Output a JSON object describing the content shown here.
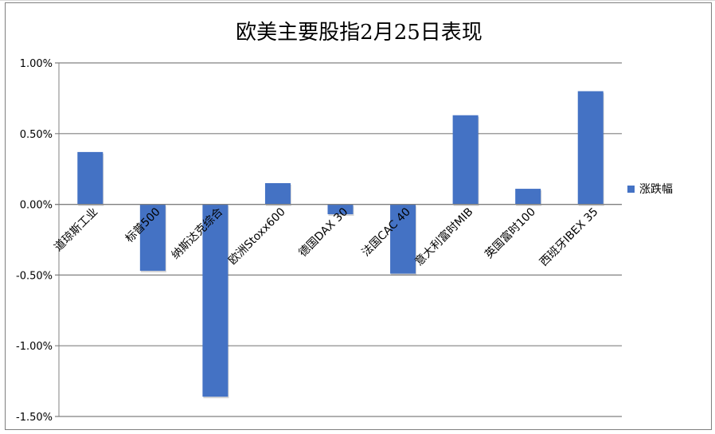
{
  "chart_data": {
    "type": "bar",
    "title": "欧美主要股指2月25日表现",
    "categories": [
      "道琼斯工业",
      "标普500",
      "纳斯达克综合",
      "欧洲Stoxx600",
      "德国DAX 30",
      "法国CAC 40",
      "意大利富时MIB",
      "英国富时100",
      "西班牙IBEX 35"
    ],
    "series": [
      {
        "name": "涨跌幅",
        "values": [
          0.37,
          -0.47,
          -1.36,
          0.15,
          -0.07,
          -0.49,
          0.63,
          0.11,
          0.8
        ]
      }
    ],
    "ylim": [
      -1.5,
      1.0
    ],
    "yticks": [
      1.0,
      0.5,
      0.0,
      -0.5,
      -1.0,
      -1.5
    ],
    "ytick_labels": [
      "1.00%",
      "0.50%",
      "0.00%",
      "-0.50%",
      "-1.00%",
      "-1.50%"
    ],
    "xlabel": "",
    "ylabel": "",
    "grid": true,
    "legend_position": "right",
    "colors": {
      "bar": "#4472c4",
      "grid": "#808080"
    }
  }
}
